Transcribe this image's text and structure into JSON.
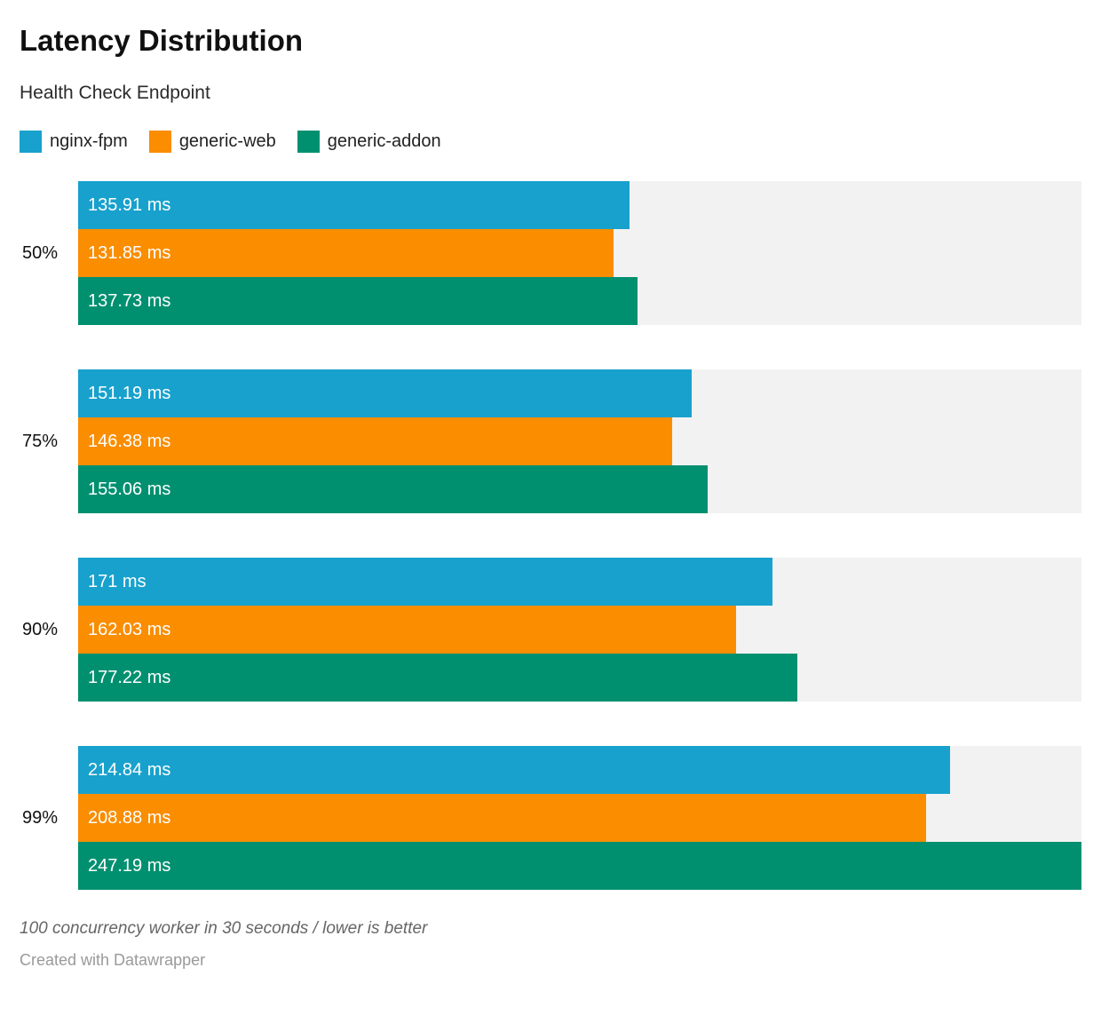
{
  "header": {
    "title": "Latency Distribution",
    "subtitle": "Health Check Endpoint"
  },
  "chart_data": {
    "type": "bar",
    "orientation": "horizontal",
    "title": "Latency Distribution",
    "subtitle": "Health Check Endpoint",
    "categories": [
      "50%",
      "75%",
      "90%",
      "99%"
    ],
    "series": [
      {
        "name": "nginx-fpm",
        "color": "#18a1cd",
        "values": [
          135.91,
          151.19,
          171,
          214.84
        ],
        "labels": [
          "135.91 ms",
          "151.19 ms",
          "171 ms",
          "214.84 ms"
        ]
      },
      {
        "name": "generic-web",
        "color": "#fa8d00",
        "values": [
          131.85,
          146.38,
          162.03,
          208.88
        ],
        "labels": [
          "131.85 ms",
          "146.38 ms",
          "162.03 ms",
          "208.88 ms"
        ]
      },
      {
        "name": "generic-addon",
        "color": "#009070",
        "values": [
          137.73,
          155.06,
          177.22,
          247.19
        ],
        "labels": [
          "137.73 ms",
          "155.06 ms",
          "177.22 ms",
          "247.19 ms"
        ]
      }
    ],
    "unit": "ms",
    "xlim": [
      0,
      247.19
    ],
    "track_color": "#f2f2f2",
    "grid": false,
    "legend_position": "top",
    "value_labels_inside_bars": true
  },
  "footer": {
    "note": "100 concurrency worker in 30 seconds / lower is better",
    "credit": "Created with Datawrapper"
  }
}
